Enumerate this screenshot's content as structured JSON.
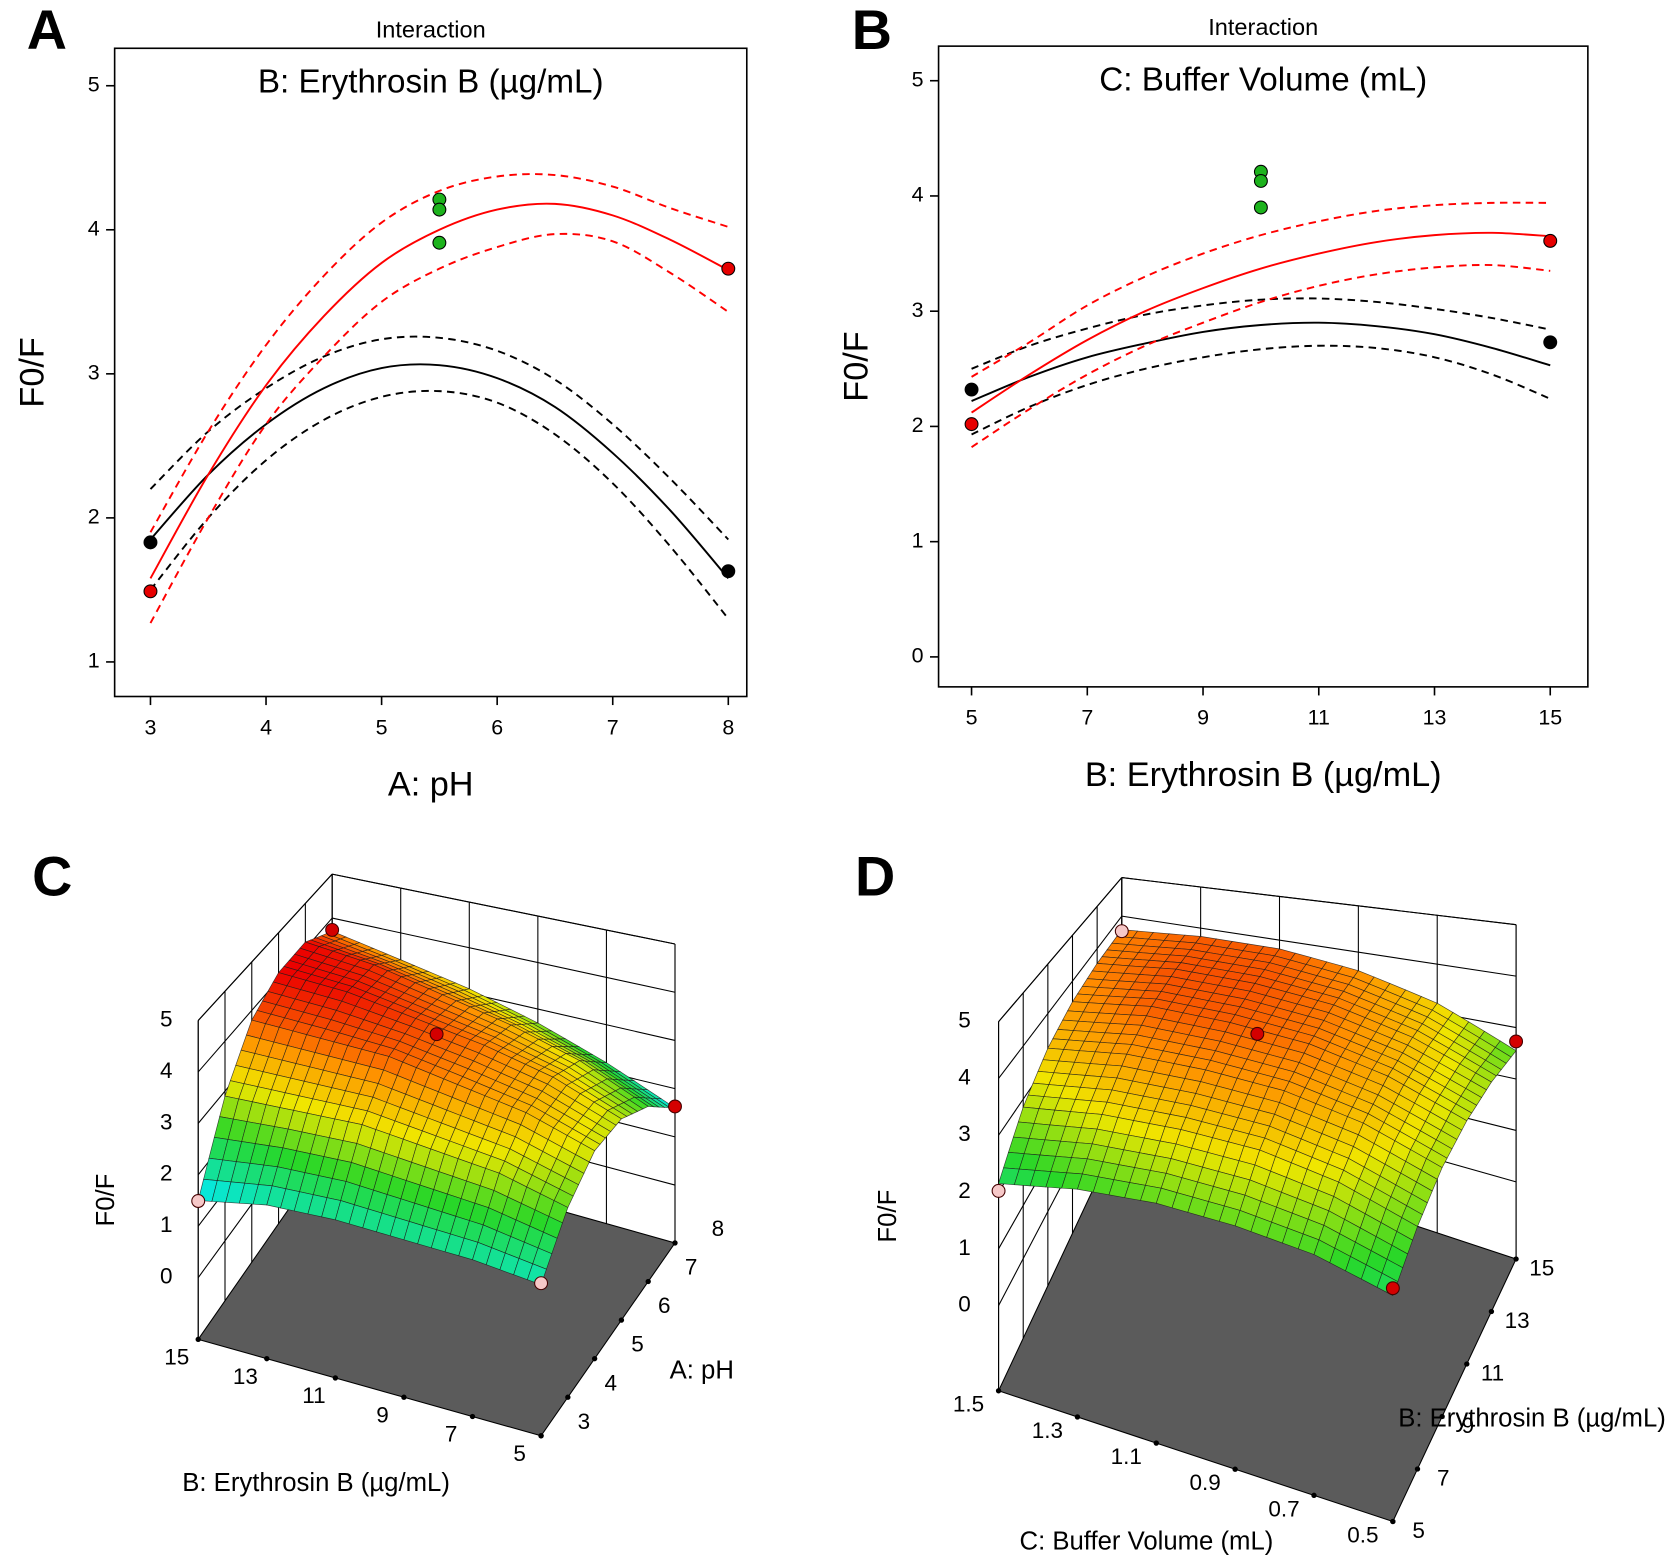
{
  "chart_data": [
    {
      "type": "line",
      "label": "A",
      "title": "Interaction",
      "legend_title": "B: Erythrosin B (µg/mL)",
      "xlabel": "A: pH",
      "ylabel": "F0/F",
      "xlim": [
        2.69,
        8.16
      ],
      "ylim": [
        0.76,
        5.26
      ],
      "xticks": [
        3,
        4,
        5,
        6,
        7,
        8
      ],
      "yticks": [
        1,
        2,
        3,
        4,
        5
      ],
      "x": [
        3,
        3.5,
        4,
        4.5,
        5,
        5.5,
        6,
        6.5,
        7,
        7.5,
        8
      ],
      "series": [
        {
          "color": "#000000",
          "dash": false,
          "values": [
            1.85,
            2.3,
            2.65,
            2.9,
            3.04,
            3.06,
            2.97,
            2.77,
            2.45,
            2.05,
            1.58
          ]
        },
        {
          "color": "#000000",
          "dash": true,
          "values": [
            2.2,
            2.6,
            2.9,
            3.12,
            3.24,
            3.25,
            3.16,
            2.96,
            2.65,
            2.27,
            1.85
          ]
        },
        {
          "color": "#000000",
          "dash": true,
          "values": [
            1.5,
            2.0,
            2.4,
            2.68,
            2.84,
            2.88,
            2.8,
            2.58,
            2.24,
            1.8,
            1.3
          ]
        },
        {
          "color": "#ff0000",
          "dash": false,
          "values": [
            1.58,
            2.3,
            2.92,
            3.4,
            3.77,
            4.0,
            4.14,
            4.18,
            4.1,
            3.93,
            3.72
          ]
        },
        {
          "color": "#ff0000",
          "dash": true,
          "values": [
            1.9,
            2.6,
            3.2,
            3.68,
            4.05,
            4.27,
            4.37,
            4.38,
            4.3,
            4.15,
            4.02
          ]
        },
        {
          "color": "#ff0000",
          "dash": true,
          "values": [
            1.27,
            2.0,
            2.65,
            3.12,
            3.5,
            3.73,
            3.88,
            3.97,
            3.92,
            3.7,
            3.43
          ]
        }
      ],
      "points": {
        "x": [
          3,
          8,
          3,
          8,
          5.5,
          5.5,
          5.5
        ],
        "y": [
          1.83,
          1.63,
          1.49,
          3.73,
          4.21,
          4.14,
          3.91
        ],
        "colors": [
          "#000000",
          "#000000",
          "#e60000",
          "#e60000",
          "#1db31d",
          "#1db31d",
          "#1db31d"
        ]
      }
    },
    {
      "type": "line",
      "label": "B",
      "title": "Interaction",
      "legend_title": "C: Buffer Volume (mL)",
      "xlabel": "B: Erythrosin B (µg/mL)",
      "ylabel": "F0/F",
      "xlim": [
        4.43,
        15.65
      ],
      "ylim": [
        -0.26,
        5.3
      ],
      "xticks": [
        5,
        7,
        9,
        11,
        13,
        15
      ],
      "yticks": [
        0,
        1,
        2,
        3,
        4,
        5
      ],
      "x": [
        5,
        6,
        7,
        8,
        9,
        10,
        11,
        12,
        13,
        14,
        15
      ],
      "series": [
        {
          "color": "#000000",
          "dash": false,
          "values": [
            2.22,
            2.43,
            2.6,
            2.72,
            2.82,
            2.88,
            2.9,
            2.87,
            2.8,
            2.68,
            2.53
          ]
        },
        {
          "color": "#000000",
          "dash": true,
          "values": [
            2.5,
            2.7,
            2.85,
            2.97,
            3.05,
            3.1,
            3.11,
            3.08,
            3.02,
            2.94,
            2.84
          ]
        },
        {
          "color": "#000000",
          "dash": true,
          "values": [
            1.93,
            2.17,
            2.36,
            2.5,
            2.6,
            2.67,
            2.7,
            2.68,
            2.6,
            2.45,
            2.24
          ]
        },
        {
          "color": "#ff0000",
          "dash": false,
          "values": [
            2.12,
            2.45,
            2.75,
            3.0,
            3.2,
            3.37,
            3.5,
            3.6,
            3.66,
            3.68,
            3.65
          ]
        },
        {
          "color": "#ff0000",
          "dash": true,
          "values": [
            2.43,
            2.73,
            3.05,
            3.3,
            3.5,
            3.66,
            3.78,
            3.87,
            3.92,
            3.94,
            3.94
          ]
        },
        {
          "color": "#ff0000",
          "dash": true,
          "values": [
            1.82,
            2.15,
            2.45,
            2.7,
            2.9,
            3.08,
            3.22,
            3.32,
            3.38,
            3.4,
            3.35
          ]
        }
      ],
      "points": {
        "x": [
          5,
          15,
          5,
          15,
          10,
          10,
          10
        ],
        "y": [
          2.32,
          2.73,
          2.02,
          3.61,
          4.21,
          4.13,
          3.9
        ],
        "colors": [
          "#000000",
          "#000000",
          "#e60000",
          "#e60000",
          "#1db31d",
          "#1db31d",
          "#1db31d"
        ]
      }
    },
    {
      "type": "surface3d",
      "label": "C",
      "xlabel": "A: pH",
      "ylabel": "B: Erythrosin B (µg/mL)",
      "zlabel": "F0/F",
      "xlim": [
        3,
        8
      ],
      "ylim": [
        5,
        15
      ],
      "zlim": [
        -1.2,
        5
      ],
      "xticks": [
        3,
        4,
        5,
        6,
        7,
        8
      ],
      "yticks": [
        5,
        7,
        9,
        11,
        13,
        15
      ],
      "zticks": [
        0,
        1,
        2,
        3,
        4,
        5
      ],
      "surface_x": [
        3,
        4,
        5,
        6,
        7,
        8
      ],
      "surface_y": [
        5,
        7,
        9,
        11,
        13,
        15
      ],
      "surface_z": [
        [
          1.8,
          2.6,
          3.0,
          2.9,
          2.4,
          1.6
        ],
        [
          1.9,
          2.9,
          3.4,
          3.4,
          3.0,
          2.2
        ],
        [
          1.9,
          3.0,
          3.6,
          3.7,
          3.4,
          2.7
        ],
        [
          1.9,
          3.1,
          3.8,
          3.9,
          3.7,
          3.1
        ],
        [
          1.8,
          3.0,
          3.8,
          4.1,
          4.0,
          3.4
        ],
        [
          1.5,
          2.9,
          3.8,
          4.15,
          4.15,
          3.7
        ]
      ],
      "points": {
        "x": [
          8,
          5.5,
          8,
          3,
          3
        ],
        "y": [
          15,
          10,
          5,
          15,
          5
        ],
        "z": [
          3.73,
          4.1,
          1.63,
          1.49,
          1.83
        ],
        "colors": [
          "#d40000",
          "#d40000",
          "#d40000",
          "#f6c8c8",
          "#f6c8c8"
        ]
      }
    },
    {
      "type": "surface3d",
      "label": "D",
      "xlabel": "C: Buffer Volume (mL)",
      "ylabel": "B: Erythrosin B (µg/mL)",
      "zlabel": "F0/F",
      "xlim": [
        0.5,
        1.5
      ],
      "ylim": [
        5,
        15
      ],
      "zlim": [
        -1.5,
        5
      ],
      "xticks": [
        0.5,
        0.7,
        0.9,
        1.1,
        1.3,
        1.5
      ],
      "yticks": [
        5,
        7,
        9,
        11,
        13,
        15
      ],
      "zticks": [
        0,
        1,
        2,
        3,
        4,
        5
      ],
      "surface_x": [
        0.5,
        0.7,
        0.9,
        1.1,
        1.3,
        1.5
      ],
      "surface_y": [
        5,
        7,
        9,
        11,
        13,
        15
      ],
      "surface_z": [
        [
          2.2,
          2.5,
          2.6,
          2.6,
          2.45,
          2.15
        ],
        [
          2.6,
          3.0,
          3.2,
          3.2,
          3.1,
          2.85
        ],
        [
          2.85,
          3.3,
          3.55,
          3.6,
          3.55,
          3.3
        ],
        [
          2.9,
          3.4,
          3.7,
          3.8,
          3.8,
          3.55
        ],
        [
          2.8,
          3.35,
          3.7,
          3.85,
          3.85,
          3.65
        ],
        [
          2.55,
          3.2,
          3.6,
          3.8,
          3.8,
          3.65
        ]
      ],
      "points": {
        "x": [
          1.5,
          0.5,
          0.5,
          1.5,
          1
        ],
        "y": [
          5,
          15,
          5,
          15,
          10
        ],
        "z": [
          2.02,
          2.73,
          2.32,
          3.61,
          4.1
        ],
        "colors": [
          "#f6c8c8",
          "#d40000",
          "#d40000",
          "#f6c8c8",
          "#d40000"
        ]
      }
    }
  ]
}
